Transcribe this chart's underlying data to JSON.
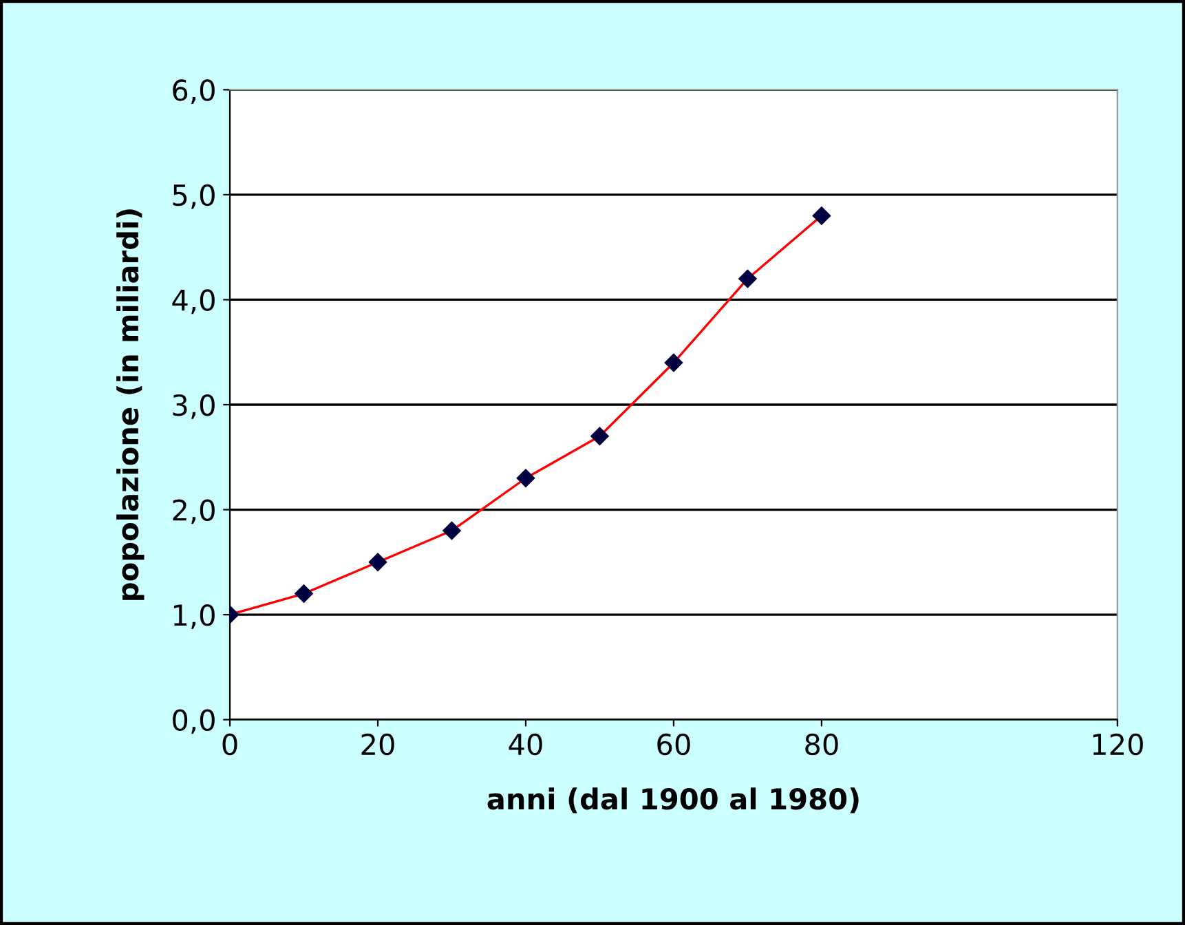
{
  "chart_data": {
    "type": "line",
    "xlabel": "anni (dal 1900 al 1980)",
    "ylabel": "popolazione (in miliardi)",
    "x": [
      0,
      10,
      20,
      30,
      40,
      50,
      60,
      70,
      80
    ],
    "series": [
      {
        "color": "#ff0000",
        "values": [
          1.0,
          1.2,
          1.5,
          1.8,
          2.3,
          2.7,
          3.4,
          4.2,
          4.8
        ]
      }
    ],
    "marker": "diamond",
    "line_style": "solid",
    "xlim": [
      0,
      120
    ],
    "xticks": [
      0,
      20,
      40,
      60,
      80,
      120
    ],
    "ylim": [
      0,
      6
    ],
    "yticks": [
      {
        "value": 0,
        "label": "0,0"
      },
      {
        "value": 1,
        "label": "1,0"
      },
      {
        "value": 2,
        "label": "2,0"
      },
      {
        "value": 3,
        "label": "3,0"
      },
      {
        "value": 4,
        "label": "4,0"
      },
      {
        "value": 5,
        "label": "5,0"
      },
      {
        "value": 6,
        "label": "6,0"
      }
    ],
    "grid": "y",
    "legend": false
  }
}
